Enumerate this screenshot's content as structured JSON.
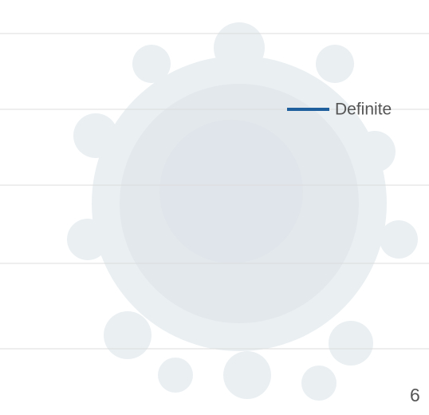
{
  "chart_data": {
    "type": "line",
    "categories": [
      "6"
    ],
    "series": [
      {
        "name": "Definite",
        "color": "#1f5f9e",
        "values": [
          null
        ]
      }
    ]
  }
}
